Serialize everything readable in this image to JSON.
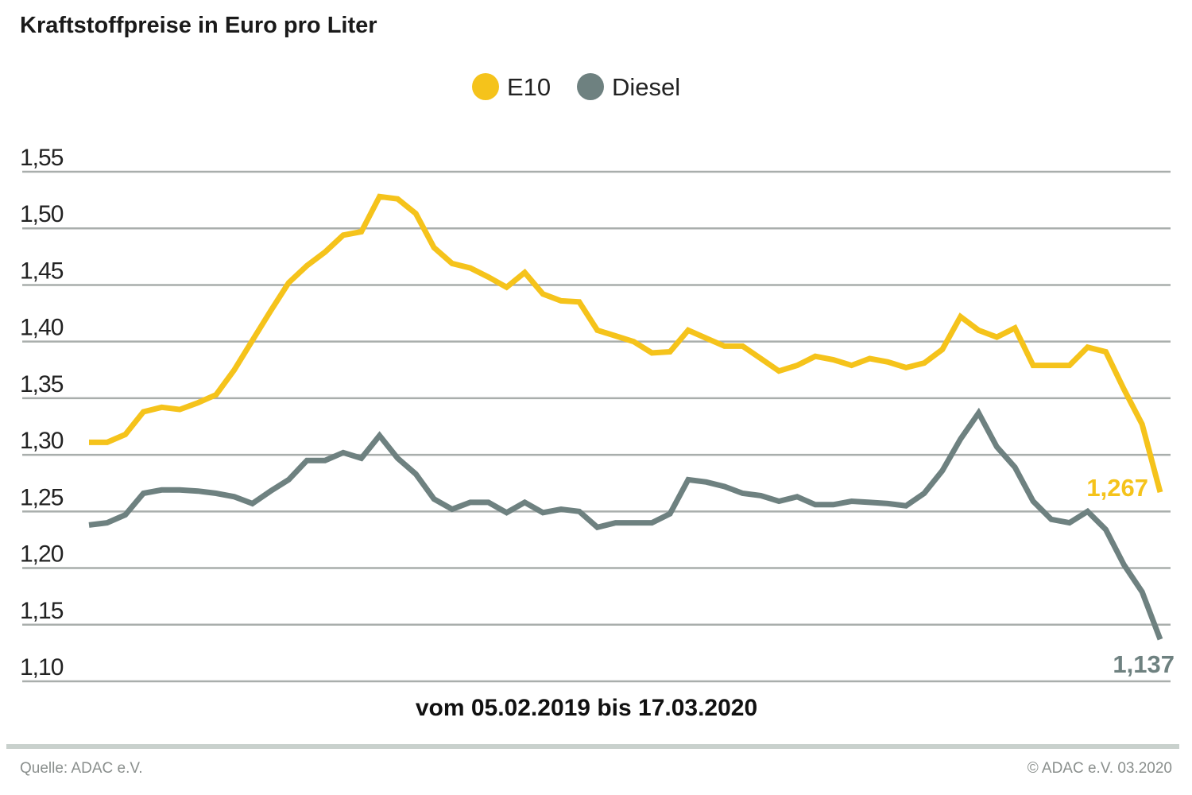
{
  "chart_data": {
    "type": "line",
    "title": "Kraftstoffpreise in Euro pro Liter",
    "subtitle": "vom 05.02.2019 bis 17.03.2020",
    "xlabel": "",
    "ylabel": "",
    "ylim": [
      1.1,
      1.55
    ],
    "yticks": [
      "1,55",
      "1,50",
      "1,45",
      "1,40",
      "1,35",
      "1,30",
      "1,25",
      "1,20",
      "1,15",
      "1,10"
    ],
    "ytick_values": [
      1.55,
      1.5,
      1.45,
      1.4,
      1.35,
      1.3,
      1.25,
      1.2,
      1.15,
      1.1
    ],
    "grid": true,
    "legend_position": "top-center",
    "series": [
      {
        "name": "E10",
        "color": "#f5c31b",
        "end_label": "1,267",
        "values": [
          1.311,
          1.311,
          1.318,
          1.338,
          1.342,
          1.34,
          1.346,
          1.353,
          1.375,
          1.401,
          1.427,
          1.452,
          1.467,
          1.479,
          1.494,
          1.497,
          1.528,
          1.526,
          1.513,
          1.483,
          1.469,
          1.465,
          1.457,
          1.448,
          1.461,
          1.442,
          1.436,
          1.435,
          1.41,
          1.405,
          1.4,
          1.39,
          1.391,
          1.41,
          1.403,
          1.396,
          1.396,
          1.385,
          1.374,
          1.379,
          1.387,
          1.384,
          1.379,
          1.385,
          1.382,
          1.377,
          1.381,
          1.393,
          1.422,
          1.41,
          1.404,
          1.412,
          1.379,
          1.379,
          1.379,
          1.395,
          1.391,
          1.358,
          1.327,
          1.267
        ]
      },
      {
        "name": "Diesel",
        "color": "#6e8180",
        "end_label": "1,137",
        "values": [
          1.238,
          1.24,
          1.247,
          1.266,
          1.269,
          1.269,
          1.268,
          1.266,
          1.263,
          1.257,
          1.268,
          1.278,
          1.295,
          1.295,
          1.302,
          1.297,
          1.317,
          1.297,
          1.283,
          1.261,
          1.252,
          1.258,
          1.258,
          1.249,
          1.258,
          1.249,
          1.252,
          1.25,
          1.236,
          1.24,
          1.24,
          1.24,
          1.248,
          1.278,
          1.276,
          1.272,
          1.266,
          1.264,
          1.259,
          1.263,
          1.256,
          1.256,
          1.259,
          1.258,
          1.257,
          1.255,
          1.266,
          1.286,
          1.314,
          1.337,
          1.307,
          1.289,
          1.259,
          1.243,
          1.24,
          1.25,
          1.234,
          1.203,
          1.179,
          1.137
        ]
      }
    ]
  },
  "footer": {
    "source": "Quelle: ADAC e.V.",
    "copyright": "© ADAC e.V.  03.2020"
  }
}
